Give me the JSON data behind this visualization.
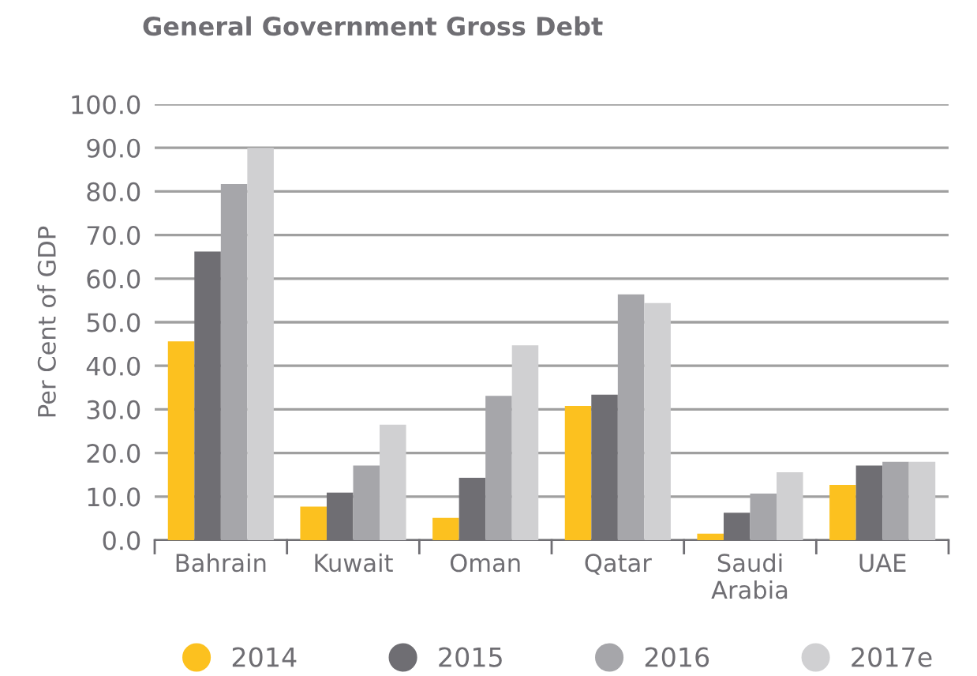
{
  "chart_data": {
    "type": "bar",
    "title": "General Government Gross Debt",
    "ylabel": "Per Cent of GDP",
    "categories": [
      "Bahrain",
      "Kuwait",
      "Oman",
      "Qatar",
      "Saudi\nArabia",
      "UAE"
    ],
    "series": [
      {
        "name": "2014",
        "color": "#fcc11f",
        "values": [
          45.6,
          7.7,
          5.1,
          30.8,
          1.5,
          12.7
        ]
      },
      {
        "name": "2015",
        "color": "#6f6e73",
        "values": [
          66.2,
          10.9,
          14.3,
          33.4,
          6.3,
          17.1
        ]
      },
      {
        "name": "2016",
        "color": "#a6a6aa",
        "values": [
          81.7,
          17.1,
          33.1,
          56.4,
          10.7,
          18.0
        ]
      },
      {
        "name": "2017e",
        "color": "#d0d0d2",
        "values": [
          90.0,
          26.5,
          44.7,
          54.4,
          15.6,
          18.0
        ]
      }
    ],
    "ylim": [
      0,
      100
    ],
    "yticks": [
      {
        "value": 0,
        "label": "0.0"
      },
      {
        "value": 10,
        "label": "10.0"
      },
      {
        "value": 20,
        "label": "20.0"
      },
      {
        "value": 30,
        "label": "30.0"
      },
      {
        "value": 40,
        "label": "40.0"
      },
      {
        "value": 50,
        "label": "50.0"
      },
      {
        "value": 60,
        "label": "60.0"
      },
      {
        "value": 70,
        "label": "70.0"
      },
      {
        "value": 80,
        "label": "80.0"
      },
      {
        "value": 90,
        "label": "90.0"
      },
      {
        "value": 100,
        "label": "100.0"
      }
    ],
    "grid": "y",
    "legend": "bottom",
    "marker": "circle"
  }
}
